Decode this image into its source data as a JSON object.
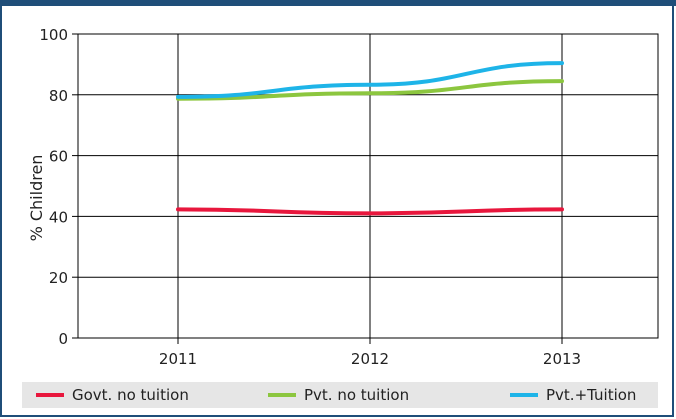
{
  "chart_data": {
    "type": "line",
    "ylabel": "% Children",
    "ylim": [
      0,
      100
    ],
    "yticks": [
      0,
      20,
      40,
      60,
      80,
      100
    ],
    "categories": [
      "2011",
      "2012",
      "2013"
    ],
    "grid": true,
    "legend_position": "bottom",
    "series": [
      {
        "name": "Govt. no tuition",
        "color": "#e8173d",
        "values": [
          42.3,
          41.0,
          42.3
        ]
      },
      {
        "name": "Pvt. no tuition",
        "color": "#8cc63f",
        "values": [
          78.7,
          80.5,
          84.5
        ]
      },
      {
        "name": "Pvt.+Tuition",
        "color": "#1eb4e8",
        "values": [
          79.3,
          83.3,
          90.4
        ]
      }
    ]
  }
}
